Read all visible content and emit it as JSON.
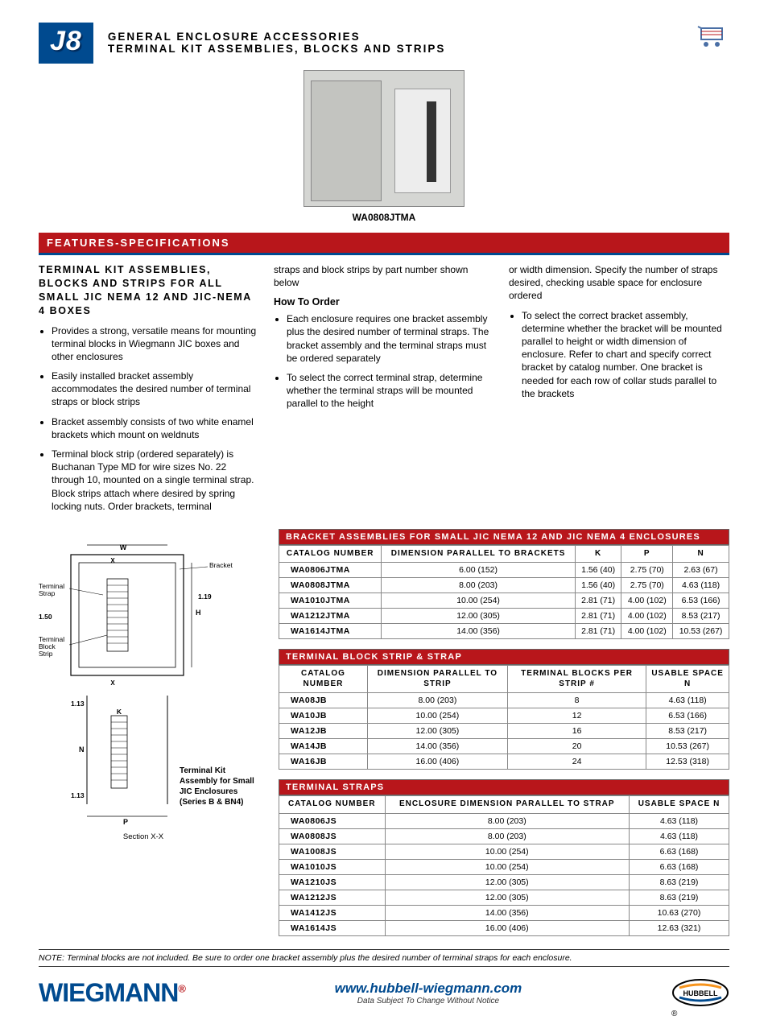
{
  "header": {
    "badge": "J8",
    "line1": "GENERAL ENCLOSURE ACCESSORIES",
    "line2": "TERMINAL KIT ASSEMBLIES, BLOCKS AND STRIPS"
  },
  "hero_caption": "WA0808JTMA",
  "section_bar": "FEATURES-SPECIFICATIONS",
  "leftcol": {
    "heading": "TERMINAL KIT ASSEMBLIES, BLOCKS AND STRIPS FOR ALL SMALL JIC NEMA 12 AND JIC-NEMA 4 BOXES",
    "bullets": [
      "Provides a strong, versatile means for mounting terminal blocks in Wiegmann JIC boxes and other enclosures",
      "Easily installed bracket assembly accommodates the desired number of terminal straps or block strips",
      "Bracket assembly consists of two white enamel brackets which mount on weldnuts",
      "Terminal block strip (ordered separately) is Buchanan Type MD for wire sizes No. 22 through 10, mounted on a single terminal strap. Block strips attach where desired by spring locking nuts. Order brackets, terminal"
    ],
    "diag_label_bracket": "Bracket",
    "diag_label_strap": "Terminal Strap",
    "diag_label_block": "Terminal Block Strip",
    "diag_dim_150": "1.50",
    "diag_dim_119": "1.19",
    "diag_dim_113": "1.13",
    "diag_dim_K": "K",
    "diag_dim_N": "N",
    "diag_dim_P": "P",
    "diag_dim_W": "W",
    "diag_dim_H": "H",
    "diag_dim_X": "X",
    "diag_right_label": "Terminal Kit Assembly for Small JIC Enclosures (Series B & BN4)",
    "section_xx": "Section X-X"
  },
  "midcol": {
    "lead": "straps and block strips by part number shown below",
    "howto": "How To Order",
    "bullets": [
      "Each enclosure requires one bracket assembly plus the desired number of terminal straps. The bracket assembly and the terminal straps must be ordered separately",
      "To select the correct terminal strap, determine whether the terminal straps will be mounted parallel to the height"
    ]
  },
  "rightcol": {
    "lead": "or width dimension. Specify the number of straps desired, checking usable space for enclosure ordered",
    "bullets": [
      "To select the correct bracket assembly, determine whether the bracket will be mounted parallel to height or width dimension of enclosure. Refer to chart and specify correct bracket by catalog number. One bracket is needed for each row of collar studs parallel to the brackets"
    ]
  },
  "table1": {
    "caption": "BRACKET ASSEMBLIES FOR SMALL JIC NEMA 12 AND JIC NEMA 4 ENCLOSURES",
    "headers": [
      "CATALOG NUMBER",
      "DIMENSION PARALLEL TO BRACKETS",
      "K",
      "P",
      "N"
    ],
    "rows": [
      [
        "WA0806JTMA",
        "6.00 (152)",
        "1.56 (40)",
        "2.75 (70)",
        "2.63 (67)"
      ],
      [
        "WA0808JTMA",
        "8.00 (203)",
        "1.56 (40)",
        "2.75 (70)",
        "4.63 (118)"
      ],
      [
        "WA1010JTMA",
        "10.00 (254)",
        "2.81 (71)",
        "4.00 (102)",
        "6.53 (166)"
      ],
      [
        "WA1212JTMA",
        "12.00 (305)",
        "2.81 (71)",
        "4.00 (102)",
        "8.53 (217)"
      ],
      [
        "WA1614JTMA",
        "14.00 (356)",
        "2.81 (71)",
        "4.00 (102)",
        "10.53 (267)"
      ]
    ]
  },
  "table2": {
    "caption": "TERMINAL BLOCK STRIP & STRAP",
    "headers": [
      "CATALOG NUMBER",
      "DIMENSION PARALLEL TO STRIP",
      "TERMINAL BLOCKS PER STRIP #",
      "USABLE SPACE N"
    ],
    "rows": [
      [
        "WA08JB",
        "8.00 (203)",
        "8",
        "4.63 (118)"
      ],
      [
        "WA10JB",
        "10.00 (254)",
        "12",
        "6.53 (166)"
      ],
      [
        "WA12JB",
        "12.00 (305)",
        "16",
        "8.53 (217)"
      ],
      [
        "WA14JB",
        "14.00 (356)",
        "20",
        "10.53 (267)"
      ],
      [
        "WA16JB",
        "16.00 (406)",
        "24",
        "12.53 (318)"
      ]
    ]
  },
  "table3": {
    "caption": "TERMINAL STRAPS",
    "headers": [
      "CATALOG NUMBER",
      "ENCLOSURE DIMENSION PARALLEL TO STRAP",
      "USABLE SPACE N"
    ],
    "rows": [
      [
        "WA0806JS",
        "8.00 (203)",
        "4.63 (118)"
      ],
      [
        "WA0808JS",
        "8.00 (203)",
        "4.63 (118)"
      ],
      [
        "WA1008JS",
        "10.00 (254)",
        "6.63 (168)"
      ],
      [
        "WA1010JS",
        "10.00 (254)",
        "6.63 (168)"
      ],
      [
        "WA1210JS",
        "12.00 (305)",
        "8.63 (219)"
      ],
      [
        "WA1212JS",
        "12.00 (305)",
        "8.63 (219)"
      ],
      [
        "WA1412JS",
        "14.00 (356)",
        "10.63 (270)"
      ],
      [
        "WA1614JS",
        "16.00 (406)",
        "12.63 (321)"
      ]
    ]
  },
  "note": "NOTE: Terminal blocks are not included. Be sure to order one bracket assembly plus the desired number of terminal straps for each enclosure.",
  "footer": {
    "brand": "WIEGMANN",
    "url": "www.hubbell-wiegmann.com",
    "disclaimer": "Data Subject To Change Without Notice",
    "hub": "HUBBELL"
  },
  "colors": {
    "red": "#b8161b",
    "blue": "#004a8f",
    "border": "#888888"
  }
}
